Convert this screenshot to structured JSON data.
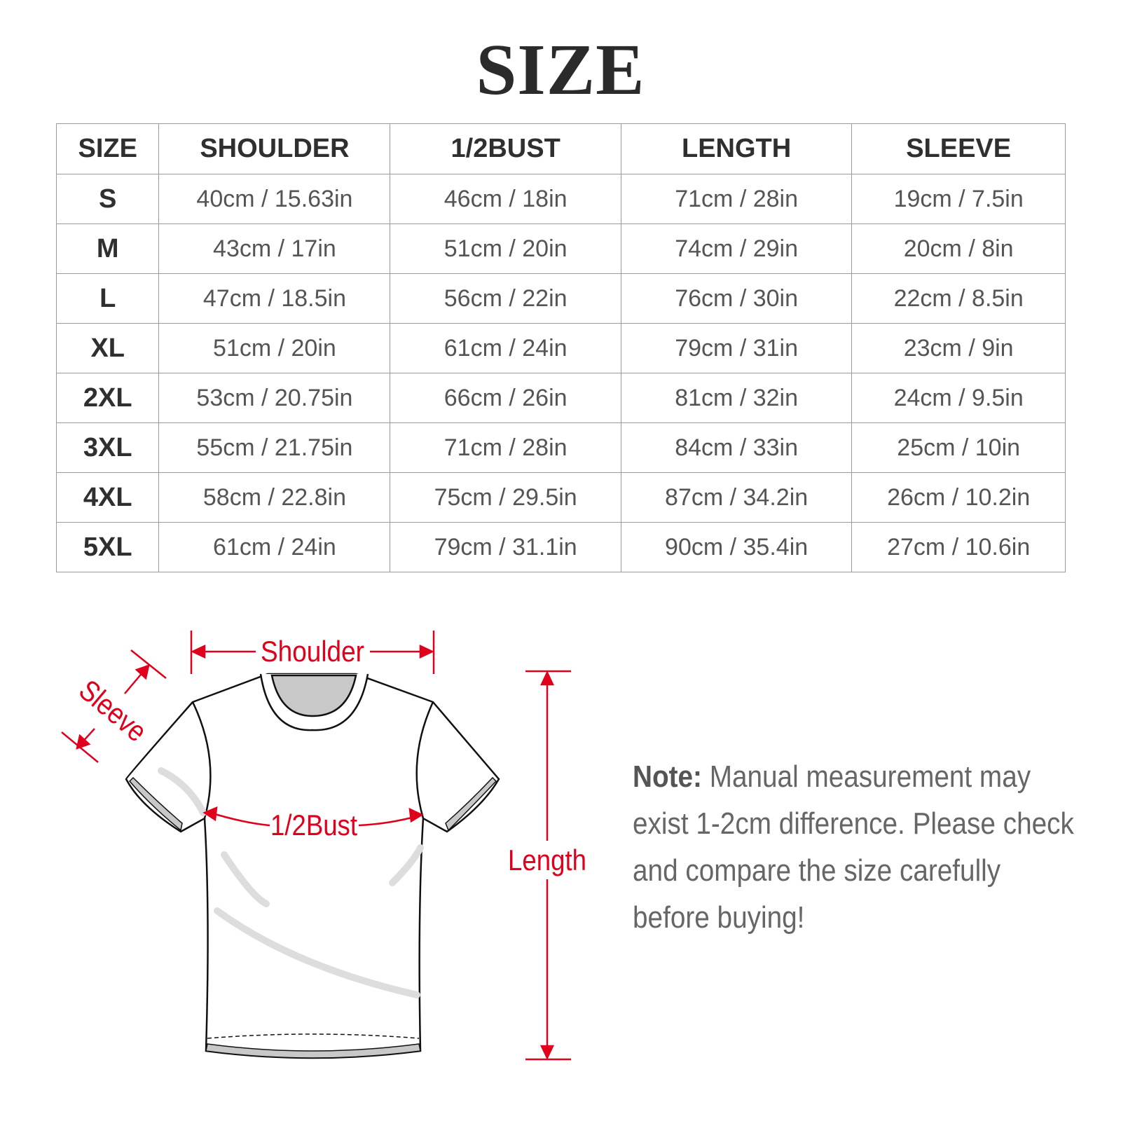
{
  "title": "SIZE",
  "table": {
    "headers": [
      "SIZE",
      "SHOULDER",
      "1/2BUST",
      "LENGTH",
      "SLEEVE"
    ],
    "rows": [
      [
        "S",
        "40cm / 15.63in",
        "46cm / 18in",
        "71cm / 28in",
        "19cm / 7.5in"
      ],
      [
        "M",
        "43cm / 17in",
        "51cm / 20in",
        "74cm / 29in",
        "20cm / 8in"
      ],
      [
        "L",
        "47cm / 18.5in",
        "56cm / 22in",
        "76cm / 30in",
        "22cm / 8.5in"
      ],
      [
        "XL",
        "51cm / 20in",
        "61cm / 24in",
        "79cm / 31in",
        "23cm / 9in"
      ],
      [
        "2XL",
        "53cm / 20.75in",
        "66cm / 26in",
        "81cm / 32in",
        "24cm / 9.5in"
      ],
      [
        "3XL",
        "55cm / 21.75in",
        "71cm / 28in",
        "84cm / 33in",
        "25cm / 10in"
      ],
      [
        "4XL",
        "58cm / 22.8in",
        "75cm / 29.5in",
        "87cm / 34.2in",
        "26cm / 10.2in"
      ],
      [
        "5XL",
        "61cm / 24in",
        "79cm / 31.1in",
        "90cm / 35.4in",
        "27cm / 10.6in"
      ]
    ]
  },
  "diagram": {
    "labels": {
      "shoulder": "Shoulder",
      "sleeve": "Sleeve",
      "bust": "1/2Bust",
      "length": "Length"
    },
    "accent_color": "#e0001b"
  },
  "note": {
    "label": "Note:",
    "text": " Manual measurement may exist 1-2cm difference. Please check and compare the size carefully before buying!"
  }
}
